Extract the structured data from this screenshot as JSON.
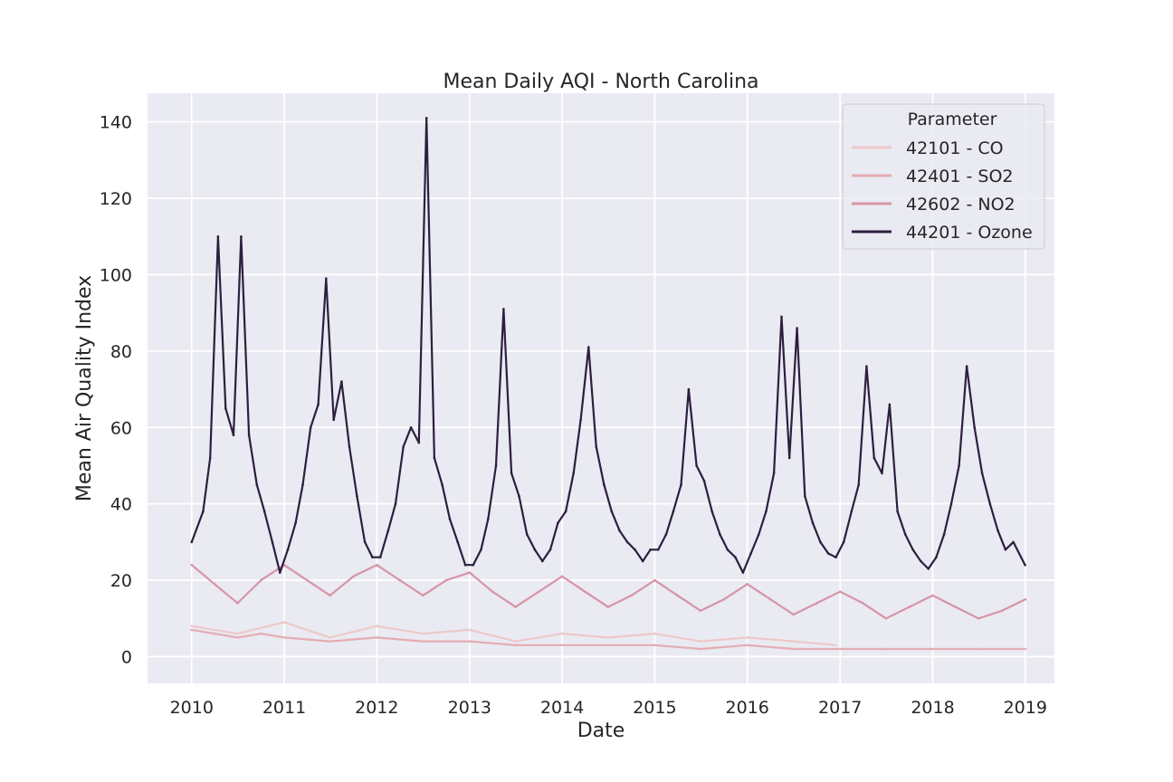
{
  "chart_data": {
    "type": "line",
    "title": "Mean Daily AQI - North Carolina",
    "xlabel": "Date",
    "ylabel": "Mean Air Quality Index",
    "x_range": [
      "2009-07-11",
      "2019-04-26"
    ],
    "x_ticks": [
      "2010",
      "2011",
      "2012",
      "2013",
      "2014",
      "2015",
      "2016",
      "2017",
      "2018",
      "2019"
    ],
    "x_tick_dates": [
      "2010-01-01",
      "2011-01-01",
      "2012-01-01",
      "2013-01-01",
      "2014-01-01",
      "2015-01-01",
      "2016-01-01",
      "2017-01-01",
      "2018-01-01",
      "2019-01-01"
    ],
    "ylim": [
      -7,
      147.5
    ],
    "y_ticks": [
      0,
      20,
      40,
      60,
      80,
      100,
      120,
      140
    ],
    "grid": true,
    "background": "#eaeaf2",
    "legend": {
      "title": "Parameter",
      "position": "top-right"
    },
    "series": [
      {
        "name": "42101 - CO",
        "color": "#ecc9c8",
        "x": [
          "2010-01-01",
          "2010-07-01",
          "2011-01-01",
          "2011-07-01",
          "2012-01-01",
          "2012-07-01",
          "2013-01-01",
          "2013-07-01",
          "2014-01-01",
          "2014-07-01",
          "2015-01-01",
          "2015-07-01",
          "2016-01-01",
          "2016-07-01",
          "2016-12-15"
        ],
        "y": [
          8,
          6,
          9,
          5,
          8,
          6,
          7,
          4,
          6,
          5,
          6,
          4,
          5,
          4,
          3
        ]
      },
      {
        "name": "42401 - SO2",
        "color": "#e3adb2",
        "x": [
          "2010-01-01",
          "2010-04-01",
          "2010-07-01",
          "2010-10-01",
          "2011-01-01",
          "2011-07-01",
          "2012-01-01",
          "2012-07-01",
          "2013-01-01",
          "2013-07-01",
          "2014-01-01",
          "2014-07-01",
          "2015-01-01",
          "2015-07-01",
          "2016-01-01",
          "2016-07-01",
          "2017-01-01",
          "2017-07-01",
          "2018-01-01",
          "2018-07-01",
          "2019-01-01"
        ],
        "y": [
          7,
          6,
          5,
          6,
          5,
          4,
          5,
          4,
          4,
          3,
          3,
          3,
          3,
          2,
          3,
          2,
          2,
          2,
          2,
          2,
          2
        ]
      },
      {
        "name": "42602 - NO2",
        "color": "#d695a6",
        "x": [
          "2010-01-01",
          "2010-04-01",
          "2010-07-01",
          "2010-10-01",
          "2011-01-01",
          "2011-04-01",
          "2011-07-01",
          "2011-10-01",
          "2012-01-01",
          "2012-04-01",
          "2012-07-01",
          "2012-10-01",
          "2013-01-01",
          "2013-04-01",
          "2013-07-01",
          "2013-10-01",
          "2014-01-01",
          "2014-04-01",
          "2014-07-01",
          "2014-10-01",
          "2015-01-01",
          "2015-04-01",
          "2015-07-01",
          "2015-10-01",
          "2016-01-01",
          "2016-04-01",
          "2016-07-01",
          "2016-10-01",
          "2017-01-01",
          "2017-04-01",
          "2017-07-01",
          "2017-10-01",
          "2018-01-01",
          "2018-04-01",
          "2018-07-01",
          "2018-10-01",
          "2019-01-01"
        ],
        "y": [
          24,
          19,
          14,
          20,
          24,
          20,
          16,
          21,
          24,
          20,
          16,
          20,
          22,
          17,
          13,
          17,
          21,
          17,
          13,
          16,
          20,
          16,
          12,
          15,
          19,
          15,
          11,
          14,
          17,
          14,
          10,
          13,
          16,
          13,
          10,
          12,
          15
        ]
      },
      {
        "name": "44201 - Ozone",
        "color": "#2d1e3e",
        "x": [
          "2010-01-01",
          "2010-02-15",
          "2010-03-15",
          "2010-04-15",
          "2010-05-15",
          "2010-06-15",
          "2010-07-15",
          "2010-08-15",
          "2010-09-15",
          "2010-10-15",
          "2010-11-15",
          "2010-12-15",
          "2011-01-15",
          "2011-02-15",
          "2011-03-15",
          "2011-04-15",
          "2011-05-15",
          "2011-06-15",
          "2011-07-15",
          "2011-08-15",
          "2011-09-15",
          "2011-10-15",
          "2011-11-15",
          "2011-12-15",
          "2012-01-15",
          "2012-02-15",
          "2012-03-15",
          "2012-04-15",
          "2012-05-15",
          "2012-06-15",
          "2012-07-15",
          "2012-08-15",
          "2012-09-15",
          "2012-10-15",
          "2012-11-15",
          "2012-12-15",
          "2013-01-15",
          "2013-02-15",
          "2013-03-15",
          "2013-04-15",
          "2013-05-15",
          "2013-06-15",
          "2013-07-15",
          "2013-08-15",
          "2013-09-15",
          "2013-10-15",
          "2013-11-15",
          "2013-12-15",
          "2014-01-15",
          "2014-02-15",
          "2014-03-15",
          "2014-04-15",
          "2014-05-15",
          "2014-06-15",
          "2014-07-15",
          "2014-08-15",
          "2014-09-15",
          "2014-10-15",
          "2014-11-15",
          "2014-12-15",
          "2015-01-15",
          "2015-02-15",
          "2015-03-15",
          "2015-04-15",
          "2015-05-15",
          "2015-06-15",
          "2015-07-15",
          "2015-08-15",
          "2015-09-15",
          "2015-10-15",
          "2015-11-15",
          "2015-12-15",
          "2016-01-15",
          "2016-02-15",
          "2016-03-15",
          "2016-04-15",
          "2016-05-15",
          "2016-06-15",
          "2016-07-15",
          "2016-08-15",
          "2016-09-15",
          "2016-10-15",
          "2016-11-15",
          "2016-12-15",
          "2017-01-15",
          "2017-02-15",
          "2017-03-15",
          "2017-04-15",
          "2017-05-15",
          "2017-06-15",
          "2017-07-15",
          "2017-08-15",
          "2017-09-15",
          "2017-10-15",
          "2017-11-15",
          "2017-12-15",
          "2018-01-15",
          "2018-02-15",
          "2018-03-15",
          "2018-04-15",
          "2018-05-15",
          "2018-06-15",
          "2018-07-15",
          "2018-08-15",
          "2018-09-15",
          "2018-10-15",
          "2018-11-15",
          "2018-12-31"
        ],
        "y": [
          30,
          38,
          52,
          110,
          65,
          58,
          110,
          58,
          45,
          38,
          30,
          22,
          28,
          35,
          45,
          60,
          66,
          99,
          62,
          72,
          55,
          42,
          30,
          26,
          26,
          33,
          40,
          55,
          60,
          56,
          141,
          52,
          45,
          36,
          30,
          24,
          24,
          28,
          36,
          50,
          91,
          48,
          42,
          32,
          28,
          25,
          28,
          35,
          38,
          48,
          62,
          81,
          55,
          45,
          38,
          33,
          30,
          28,
          25,
          28,
          28,
          32,
          38,
          45,
          70,
          50,
          46,
          38,
          32,
          28,
          26,
          22,
          27,
          32,
          38,
          48,
          89,
          52,
          86,
          42,
          35,
          30,
          27,
          26,
          30,
          38,
          45,
          76,
          52,
          48,
          66,
          38,
          32,
          28,
          25,
          23,
          26,
          32,
          40,
          50,
          76,
          60,
          48,
          40,
          33,
          28,
          30,
          24
        ]
      }
    ]
  }
}
